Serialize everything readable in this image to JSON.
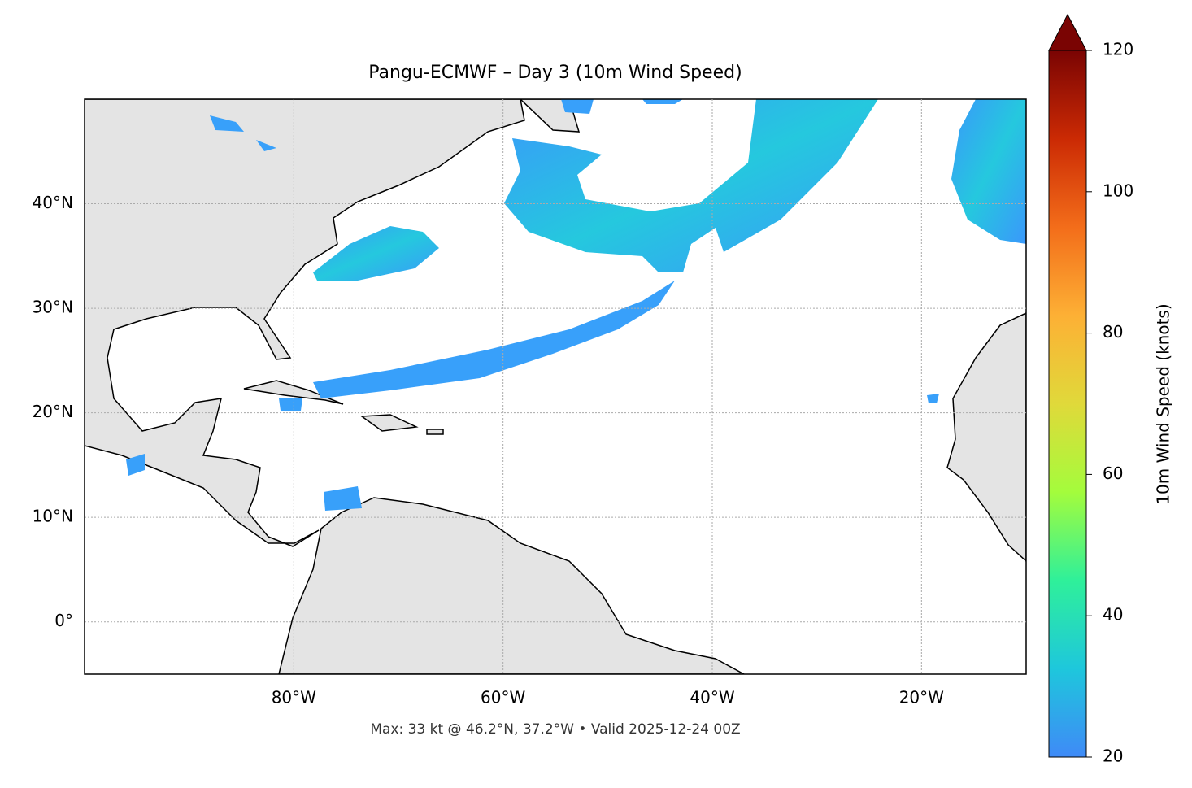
{
  "chart_data": {
    "type": "map",
    "title": "Pangu-ECMWF – Day 3 (10m Wind Speed)",
    "footnote": "Max: 33 kt @ 46.2°N, 37.2°W • Valid 2025-12-24 00Z",
    "xlim": [
      -100,
      -10
    ],
    "ylim": [
      -5,
      50
    ],
    "xticks": [
      {
        "value": -80,
        "label": "80°W"
      },
      {
        "value": -60,
        "label": "60°W"
      },
      {
        "value": -40,
        "label": "40°W"
      },
      {
        "value": -20,
        "label": "20°W"
      }
    ],
    "yticks": [
      {
        "value": 0,
        "label": "0°"
      },
      {
        "value": 10,
        "label": "10°N"
      },
      {
        "value": 20,
        "label": "20°N"
      },
      {
        "value": 30,
        "label": "30°N"
      },
      {
        "value": 40,
        "label": "40°N"
      }
    ],
    "grid": true,
    "colorbar": {
      "label": "10m Wind Speed (knots)",
      "lim": [
        20,
        120
      ],
      "ticks": [
        20,
        40,
        60,
        80,
        100,
        120
      ],
      "colors": [
        "#3f8af7",
        "#1ec7dc",
        "#2ff09a",
        "#a4fc3c",
        "#e0d93a",
        "#fdb035",
        "#f36d1a",
        "#cb2a04",
        "#7a0403"
      ]
    }
  }
}
